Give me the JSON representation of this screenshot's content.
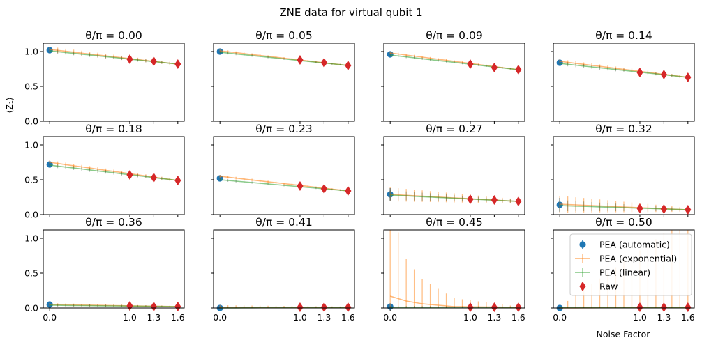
{
  "figure": {
    "title": "ZNE data for virtual qubit 1",
    "ylabel": "⟨Z₁⟩",
    "xlabel": "Noise Factor"
  },
  "legend": {
    "items": [
      {
        "label": "PEA (automatic)",
        "marker": "circle",
        "color": "#1f77b4"
      },
      {
        "label": "PEA (exponential)",
        "marker": "line-errorbar",
        "color": "#ff7f0e"
      },
      {
        "label": "PEA (linear)",
        "marker": "line-errorbar",
        "color": "#2ca02c"
      },
      {
        "label": "Raw",
        "marker": "diamond",
        "color": "#d62728"
      }
    ],
    "placement": "upper right of last panel"
  },
  "chart_data": [
    {
      "type": "line",
      "title": "θ/π = 0.00",
      "ylim": [
        0,
        1.12
      ],
      "xlim": [
        -0.08,
        1.68
      ],
      "xticks": [
        0.0,
        1.0,
        1.3,
        1.6
      ],
      "yticks": [
        0.0,
        0.5,
        1.0
      ],
      "series": [
        {
          "name": "PEA (automatic)",
          "x": [
            0.0
          ],
          "y": [
            1.02
          ],
          "err": [
            0.02
          ]
        },
        {
          "name": "PEA (exponential)",
          "x": [
            0,
            1.6
          ],
          "y": [
            1.03,
            0.82
          ],
          "err": [
            0.04,
            0.02
          ]
        },
        {
          "name": "PEA (linear)",
          "x": [
            0,
            1.6
          ],
          "y": [
            1.01,
            0.82
          ],
          "err": [
            0.03,
            0.02
          ]
        },
        {
          "name": "Raw",
          "x": [
            1.0,
            1.3,
            1.6
          ],
          "y": [
            0.89,
            0.86,
            0.82
          ]
        }
      ]
    },
    {
      "type": "line",
      "title": "θ/π = 0.05",
      "ylim": [
        0,
        1.12
      ],
      "xlim": [
        -0.08,
        1.68
      ],
      "xticks": [
        0.0,
        1.0,
        1.3,
        1.6
      ],
      "yticks": [
        0.0,
        0.5,
        1.0
      ],
      "series": [
        {
          "name": "PEA (automatic)",
          "x": [
            0.0
          ],
          "y": [
            1.0
          ],
          "err": [
            0.02
          ]
        },
        {
          "name": "PEA (exponential)",
          "x": [
            0,
            1.6
          ],
          "y": [
            1.01,
            0.8
          ],
          "err": [
            0.02,
            0.01
          ]
        },
        {
          "name": "PEA (linear)",
          "x": [
            0,
            1.6
          ],
          "y": [
            0.99,
            0.8
          ],
          "err": [
            0.02,
            0.01
          ]
        },
        {
          "name": "Raw",
          "x": [
            1.0,
            1.3,
            1.6
          ],
          "y": [
            0.88,
            0.84,
            0.8
          ]
        }
      ]
    },
    {
      "type": "line",
      "title": "θ/π = 0.09",
      "ylim": [
        0,
        1.12
      ],
      "xlim": [
        -0.08,
        1.68
      ],
      "xticks": [
        0.0,
        1.0,
        1.3,
        1.6
      ],
      "yticks": [
        0.0,
        0.5,
        1.0
      ],
      "series": [
        {
          "name": "PEA (automatic)",
          "x": [
            0.0
          ],
          "y": [
            0.96
          ],
          "err": [
            0.02
          ]
        },
        {
          "name": "PEA (exponential)",
          "x": [
            0,
            1.6
          ],
          "y": [
            0.98,
            0.74
          ],
          "err": [
            0.02,
            0.01
          ]
        },
        {
          "name": "PEA (linear)",
          "x": [
            0,
            1.6
          ],
          "y": [
            0.95,
            0.74
          ],
          "err": [
            0.02,
            0.01
          ]
        },
        {
          "name": "Raw",
          "x": [
            1.0,
            1.3,
            1.6
          ],
          "y": [
            0.82,
            0.77,
            0.74
          ]
        }
      ]
    },
    {
      "type": "line",
      "title": "θ/π = 0.14",
      "ylim": [
        0,
        1.12
      ],
      "xlim": [
        -0.08,
        1.68
      ],
      "xticks": [
        0.0,
        1.0,
        1.3,
        1.6
      ],
      "yticks": [
        0.0,
        0.5,
        1.0
      ],
      "series": [
        {
          "name": "PEA (automatic)",
          "x": [
            0.0
          ],
          "y": [
            0.84
          ],
          "err": [
            0.02
          ]
        },
        {
          "name": "PEA (exponential)",
          "x": [
            0,
            1.6
          ],
          "y": [
            0.86,
            0.63
          ],
          "err": [
            0.03,
            0.02
          ]
        },
        {
          "name": "PEA (linear)",
          "x": [
            0,
            1.6
          ],
          "y": [
            0.83,
            0.63
          ],
          "err": [
            0.03,
            0.02
          ]
        },
        {
          "name": "Raw",
          "x": [
            1.0,
            1.3,
            1.6
          ],
          "y": [
            0.7,
            0.67,
            0.63
          ]
        }
      ]
    },
    {
      "type": "line",
      "title": "θ/π = 0.18",
      "ylim": [
        0,
        1.12
      ],
      "xlim": [
        -0.08,
        1.68
      ],
      "xticks": [
        0.0,
        1.0,
        1.3,
        1.6
      ],
      "yticks": [
        0.0,
        0.5,
        1.0
      ],
      "series": [
        {
          "name": "PEA (automatic)",
          "x": [
            0.0
          ],
          "y": [
            0.72
          ],
          "err": [
            0.02
          ]
        },
        {
          "name": "PEA (exponential)",
          "x": [
            0,
            1.6
          ],
          "y": [
            0.75,
            0.49
          ],
          "err": [
            0.03,
            0.02
          ]
        },
        {
          "name": "PEA (linear)",
          "x": [
            0,
            1.6
          ],
          "y": [
            0.71,
            0.49
          ],
          "err": [
            0.03,
            0.02
          ]
        },
        {
          "name": "Raw",
          "x": [
            1.0,
            1.3,
            1.6
          ],
          "y": [
            0.57,
            0.53,
            0.49
          ]
        }
      ]
    },
    {
      "type": "line",
      "title": "θ/π = 0.23",
      "ylim": [
        0,
        1.12
      ],
      "xlim": [
        -0.08,
        1.68
      ],
      "xticks": [
        0.0,
        1.0,
        1.3,
        1.6
      ],
      "yticks": [
        0.0,
        0.5,
        1.0
      ],
      "series": [
        {
          "name": "PEA (automatic)",
          "x": [
            0.0
          ],
          "y": [
            0.52
          ],
          "err": [
            0.02
          ]
        },
        {
          "name": "PEA (exponential)",
          "x": [
            0,
            1.6
          ],
          "y": [
            0.55,
            0.34
          ],
          "err": [
            0.02,
            0.01
          ]
        },
        {
          "name": "PEA (linear)",
          "x": [
            0,
            1.6
          ],
          "y": [
            0.5,
            0.34
          ],
          "err": [
            0.02,
            0.01
          ]
        },
        {
          "name": "Raw",
          "x": [
            1.0,
            1.3,
            1.6
          ],
          "y": [
            0.41,
            0.37,
            0.34
          ]
        }
      ]
    },
    {
      "type": "line",
      "title": "θ/π = 0.27",
      "ylim": [
        0,
        1.12
      ],
      "xlim": [
        -0.08,
        1.68
      ],
      "xticks": [
        0.0,
        1.0,
        1.3,
        1.6
      ],
      "yticks": [
        0.0,
        0.5,
        1.0
      ],
      "series": [
        {
          "name": "PEA (automatic)",
          "x": [
            0.0
          ],
          "y": [
            0.29
          ],
          "err": [
            0.09
          ]
        },
        {
          "name": "PEA (exponential)",
          "x": [
            0,
            1.6
          ],
          "y": [
            0.29,
            0.19
          ],
          "err": [
            0.1,
            0.03
          ]
        },
        {
          "name": "PEA (linear)",
          "x": [
            0,
            1.6
          ],
          "y": [
            0.28,
            0.19
          ],
          "err": [
            0.07,
            0.02
          ]
        },
        {
          "name": "Raw",
          "x": [
            1.0,
            1.3,
            1.6
          ],
          "y": [
            0.22,
            0.21,
            0.19
          ]
        }
      ]
    },
    {
      "type": "line",
      "title": "θ/π = 0.32",
      "ylim": [
        0,
        1.12
      ],
      "xlim": [
        -0.08,
        1.68
      ],
      "xticks": [
        0.0,
        1.0,
        1.3,
        1.6
      ],
      "yticks": [
        0.0,
        0.5,
        1.0
      ],
      "series": [
        {
          "name": "PEA (automatic)",
          "x": [
            0.0
          ],
          "y": [
            0.14
          ],
          "err": [
            0.1
          ]
        },
        {
          "name": "PEA (exponential)",
          "x": [
            0,
            1.6
          ],
          "y": [
            0.15,
            0.07
          ],
          "err": [
            0.12,
            0.03
          ]
        },
        {
          "name": "PEA (linear)",
          "x": [
            0,
            1.6
          ],
          "y": [
            0.13,
            0.07
          ],
          "err": [
            0.08,
            0.02
          ]
        },
        {
          "name": "Raw",
          "x": [
            1.0,
            1.3,
            1.6
          ],
          "y": [
            0.09,
            0.08,
            0.07
          ]
        }
      ]
    },
    {
      "type": "line",
      "title": "θ/π = 0.36",
      "ylim": [
        0,
        1.12
      ],
      "xlim": [
        -0.08,
        1.68
      ],
      "xticks": [
        0.0,
        1.0,
        1.3,
        1.6
      ],
      "yticks": [
        0.0,
        0.5,
        1.0
      ],
      "series": [
        {
          "name": "PEA (automatic)",
          "x": [
            0.0
          ],
          "y": [
            0.05
          ],
          "err": [
            0.02
          ]
        },
        {
          "name": "PEA (exponential)",
          "x": [
            0,
            1.6
          ],
          "y": [
            0.05,
            0.02
          ],
          "err": [
            0.02,
            0.01
          ]
        },
        {
          "name": "PEA (linear)",
          "x": [
            0,
            1.6
          ],
          "y": [
            0.04,
            0.02
          ],
          "err": [
            0.02,
            0.01
          ]
        },
        {
          "name": "Raw",
          "x": [
            1.0,
            1.3,
            1.6
          ],
          "y": [
            0.03,
            0.02,
            0.02
          ]
        }
      ]
    },
    {
      "type": "line",
      "title": "θ/π = 0.41",
      "ylim": [
        0,
        1.12
      ],
      "xlim": [
        -0.08,
        1.68
      ],
      "xticks": [
        0.0,
        1.0,
        1.3,
        1.6
      ],
      "yticks": [
        0.0,
        0.5,
        1.0
      ],
      "series": [
        {
          "name": "PEA (automatic)",
          "x": [
            0.0
          ],
          "y": [
            0.0
          ],
          "err": [
            0.02
          ]
        },
        {
          "name": "PEA (exponential)",
          "x": [
            0,
            1.6
          ],
          "y": [
            0.01,
            0.01
          ],
          "err": [
            0.03,
            0.01
          ]
        },
        {
          "name": "PEA (linear)",
          "x": [
            0,
            1.6
          ],
          "y": [
            0.0,
            0.01
          ],
          "err": [
            0.02,
            0.01
          ]
        },
        {
          "name": "Raw",
          "x": [
            1.0,
            1.3,
            1.6
          ],
          "y": [
            0.01,
            0.01,
            0.01
          ]
        }
      ]
    },
    {
      "type": "line",
      "title": "θ/π = 0.45",
      "ylim": [
        0,
        1.12
      ],
      "xlim": [
        -0.08,
        1.68
      ],
      "xticks": [
        0.0,
        1.0,
        1.3,
        1.6
      ],
      "yticks": [
        0.0,
        0.5,
        1.0
      ],
      "series": [
        {
          "name": "PEA (automatic)",
          "x": [
            0.0
          ],
          "y": [
            0.02
          ],
          "err": [
            0.02
          ]
        },
        {
          "name": "PEA (exponential)",
          "x": [
            0,
            0.2,
            0.4,
            0.8,
            1.6
          ],
          "y": [
            0.17,
            0.1,
            0.06,
            0.02,
            0.01
          ],
          "err": [
            1.3,
            0.6,
            0.35,
            0.12,
            0.01
          ]
        },
        {
          "name": "PEA (linear)",
          "x": [
            0,
            1.6
          ],
          "y": [
            0.01,
            0.01
          ],
          "err": [
            0.02,
            0.01
          ]
        },
        {
          "name": "Raw",
          "x": [
            1.0,
            1.3,
            1.6
          ],
          "y": [
            0.01,
            0.01,
            0.01
          ]
        }
      ]
    },
    {
      "type": "line",
      "title": "θ/π = 0.50",
      "ylim": [
        0,
        1.12
      ],
      "xlim": [
        -0.08,
        1.68
      ],
      "xticks": [
        0.0,
        1.0,
        1.3,
        1.6
      ],
      "yticks": [
        0.0,
        0.5,
        1.0
      ],
      "series": [
        {
          "name": "PEA (automatic)",
          "x": [
            0.0
          ],
          "y": [
            0.0
          ],
          "err": [
            0.01
          ]
        },
        {
          "name": "PEA (exponential)",
          "x": [
            0,
            1.6
          ],
          "y": [
            0.0,
            0.01
          ],
          "err": [
            0.02,
            1.3
          ]
        },
        {
          "name": "PEA (linear)",
          "x": [
            0,
            1.6
          ],
          "y": [
            0.01,
            0.01
          ],
          "err": [
            0.01,
            0.01
          ]
        },
        {
          "name": "Raw",
          "x": [
            1.0,
            1.3,
            1.6
          ],
          "y": [
            0.01,
            0.01,
            0.01
          ]
        }
      ]
    }
  ]
}
